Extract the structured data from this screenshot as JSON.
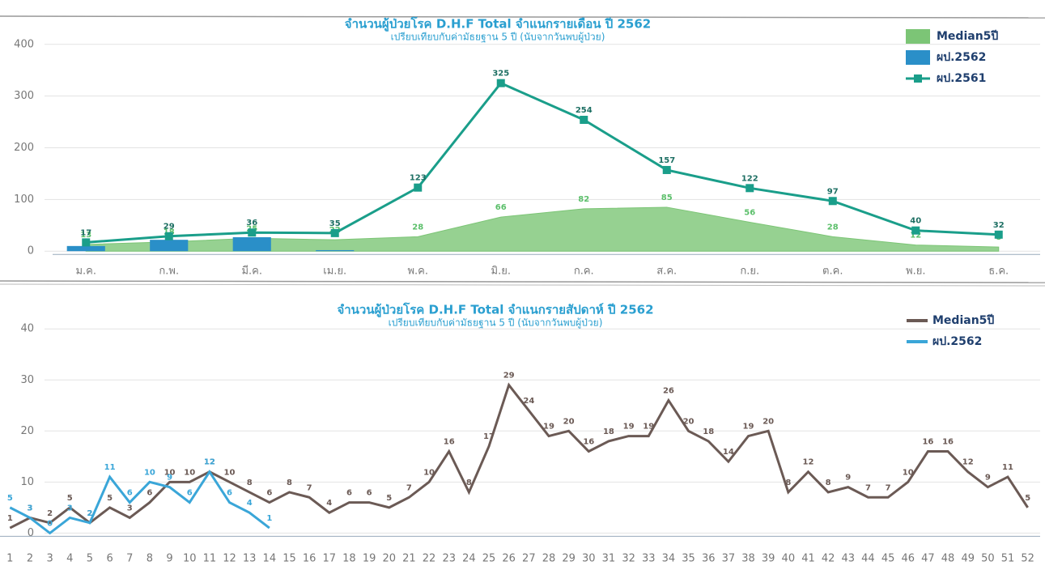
{
  "chart_data": [
    {
      "type": "combo",
      "title": "จำนวนผู้ป่วยโรค D.H.F Total จำแนกรายเดือน ปี 2562",
      "subtitle": "เปรียบเทียบกับค่ามัธยฐาน 5 ปี (นับจากวันพบผู้ป่วย)",
      "categories": [
        "ม.ค.",
        "ก.พ.",
        "มี.ค.",
        "เม.ย.",
        "พ.ค.",
        "มิ.ย.",
        "ก.ค.",
        "ส.ค.",
        "ก.ย.",
        "ต.ค.",
        "พ.ย.",
        "ธ.ค."
      ],
      "series": [
        {
          "name": "Median5ปี",
          "type": "area",
          "color": "#7cc576",
          "values": [
            13,
            18,
            25,
            22,
            28,
            66,
            82,
            85,
            56,
            28,
            12,
            8
          ]
        },
        {
          "name": "ผป.2562",
          "type": "bar",
          "color": "#2a8fc8",
          "values": [
            10,
            22,
            27,
            2,
            null,
            null,
            null,
            null,
            null,
            null,
            null,
            null
          ]
        },
        {
          "name": "ผป.2561",
          "type": "line",
          "color": "#1a9e8a",
          "values": [
            17,
            29,
            36,
            35,
            123,
            325,
            254,
            157,
            122,
            97,
            40,
            32
          ]
        }
      ],
      "ylim": [
        -20,
        420
      ],
      "yticks": [
        0,
        100,
        200,
        300,
        400
      ],
      "grid": true
    },
    {
      "type": "line",
      "title": "จำนวนผู้ป่วยโรค D.H.F Total จำแนกรายสัปดาห์ ปี 2562",
      "subtitle": "เปรียบเทียบกับค่ามัธยฐาน 5 ปี (นับจากวันพบผู้ป่วย)",
      "categories": [
        "1",
        "2",
        "3",
        "4",
        "5",
        "6",
        "7",
        "8",
        "9",
        "10",
        "11",
        "12",
        "13",
        "14",
        "15",
        "16",
        "17",
        "18",
        "19",
        "20",
        "21",
        "22",
        "23",
        "24",
        "25",
        "26",
        "27",
        "28",
        "29",
        "30",
        "31",
        "32",
        "33",
        "34",
        "35",
        "36",
        "37",
        "38",
        "39",
        "40",
        "41",
        "42",
        "43",
        "44",
        "45",
        "46",
        "47",
        "48",
        "49",
        "50",
        "51",
        "52"
      ],
      "series": [
        {
          "name": "Median5ปี",
          "color": "#6b5a55",
          "values": [
            1,
            3,
            2,
            5,
            2,
            5,
            3,
            6,
            10,
            10,
            12,
            10,
            8,
            6,
            8,
            7,
            4,
            6,
            6,
            5,
            7,
            10,
            16,
            8,
            17,
            29,
            24,
            19,
            20,
            16,
            18,
            19,
            19,
            26,
            20,
            18,
            14,
            19,
            20,
            8,
            12,
            8,
            9,
            7,
            7,
            10,
            16,
            16,
            12,
            9,
            11,
            5
          ]
        },
        {
          "name": "ผป.2562",
          "color": "#3aa6d8",
          "values": [
            5,
            3,
            0,
            3,
            2,
            11,
            6,
            10,
            9,
            6,
            12,
            6,
            4,
            1,
            null,
            null,
            null,
            null,
            null,
            null,
            null,
            null,
            null,
            null,
            null,
            null,
            null,
            null,
            null,
            null,
            null,
            null,
            null,
            null,
            null,
            null,
            null,
            null,
            null,
            null,
            null,
            null,
            null,
            null,
            null,
            null,
            null,
            null,
            null,
            null,
            null,
            null
          ]
        }
      ],
      "ylim": [
        -2,
        44
      ],
      "yticks": [
        0,
        10,
        20,
        30,
        40
      ],
      "grid": true
    }
  ]
}
